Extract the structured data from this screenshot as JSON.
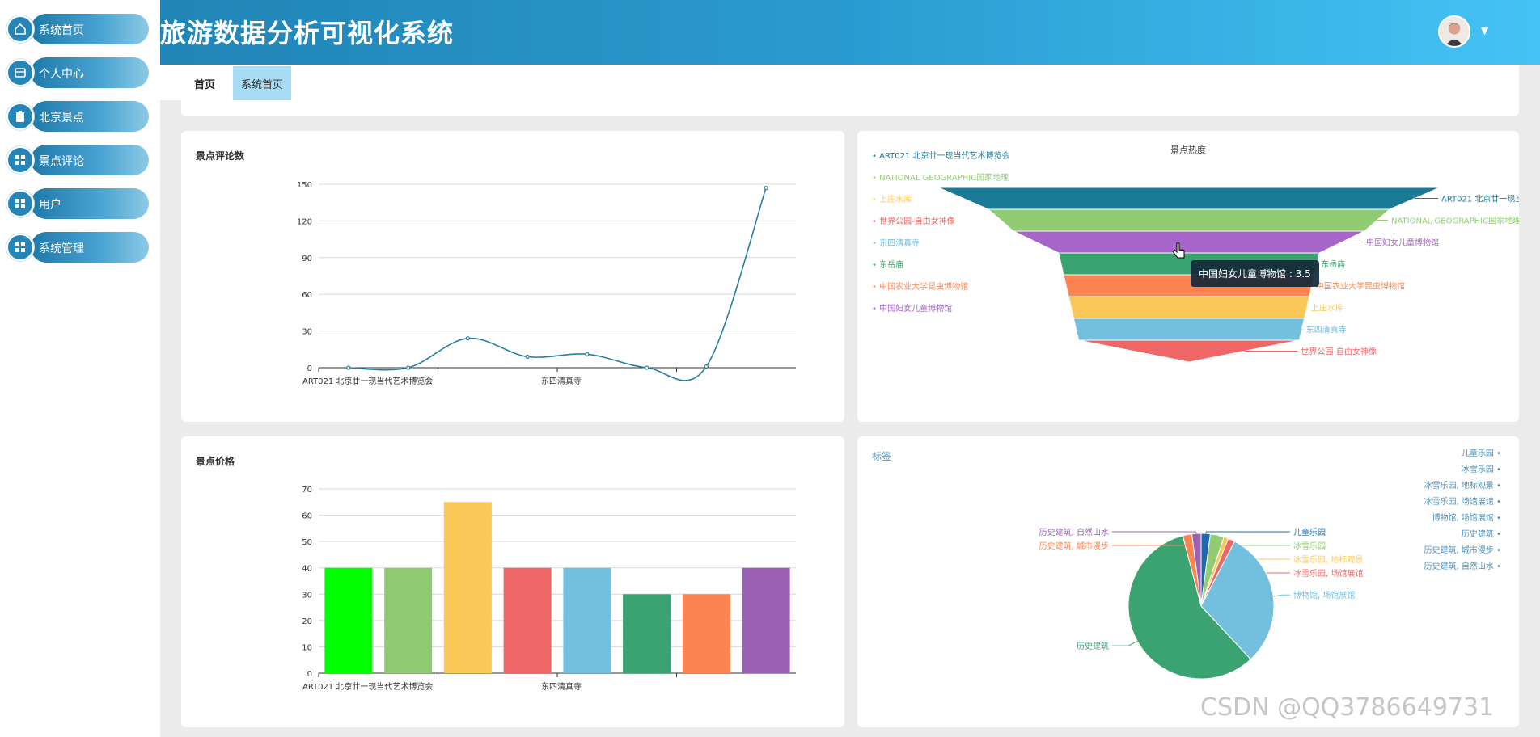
{
  "app": {
    "title": "旅游数据分析可视化系统"
  },
  "sidebar": {
    "items": [
      {
        "label": "系统首页",
        "icon": "home-icon"
      },
      {
        "label": "个人中心",
        "icon": "profile-icon"
      },
      {
        "label": "北京景点",
        "icon": "clipboard-icon"
      },
      {
        "label": "景点评论",
        "icon": "grid-icon"
      },
      {
        "label": "用户",
        "icon": "grid-icon"
      },
      {
        "label": "系统管理",
        "icon": "grid-icon"
      }
    ]
  },
  "tabs": [
    {
      "label": "首页"
    },
    {
      "label": "系统首页"
    }
  ],
  "watermark": "CSDN @QQ3786649731",
  "tooltip": "中国妇女儿童博物馆 : 3.5",
  "colors": {
    "header_start": "#1e7fb0",
    "header_end": "#45c3f4",
    "line": "#2a7fa0",
    "palette": [
      "#00ff00",
      "#91cc75",
      "#fac858",
      "#ee6666",
      "#73c0de",
      "#3ba272",
      "#fc8452",
      "#9a60b4",
      "#ea7ccc",
      "#5470c6"
    ]
  },
  "chart_data": [
    {
      "type": "line",
      "title": "景点评论数",
      "x": [
        "ART021 北京廿一现当代艺术博览会",
        "NATIONAL GEOGRAPHIC国家地理",
        "上庄水库",
        "世界公园-自由女神像",
        "东四清真寺",
        "东岳庙",
        "中国农业大学昆虫博物馆",
        "中国妇女儿童博物馆"
      ],
      "x_tick_labels": [
        "ART021 北京廿一现当代艺术博览会",
        "东四清真寺"
      ],
      "values": [
        0,
        0,
        24,
        9,
        11,
        0,
        1,
        147
      ],
      "ylim": [
        0,
        150
      ],
      "yticks": [
        0,
        30,
        60,
        90,
        120,
        150
      ],
      "smooth": true,
      "grid": true
    },
    {
      "type": "funnel",
      "title": "景点热度",
      "legend_position": "left",
      "legend": [
        "ART021 北京廿一现当代艺术博览会",
        "NATIONAL GEOGRAPHIC国家地理",
        "上庄水库",
        "世界公园-自由女神像",
        "东四清真寺",
        "东岳庙",
        "中国农业大学昆虫博物馆",
        "中国妇女儿童博物馆"
      ],
      "series": [
        {
          "name": "ART021 北京廿一现当代艺术博览会",
          "value": 5.0,
          "color": "#1b7a96"
        },
        {
          "name": "NATIONAL GEOGRAPHIC国家地理",
          "value": 4.0,
          "color": "#91cc75"
        },
        {
          "name": "中国妇女儿童博物馆",
          "value": 3.5,
          "color": "#a865c9"
        },
        {
          "name": "东岳庙",
          "value": 2.6,
          "color": "#3ba272"
        },
        {
          "name": "中国农业大学昆虫博物馆",
          "value": 2.5,
          "color": "#fc8452"
        },
        {
          "name": "上庄水库",
          "value": 2.4,
          "color": "#fac858"
        },
        {
          "name": "东四清真寺",
          "value": 2.3,
          "color": "#73c0de"
        },
        {
          "name": "世界公园-自由女神像",
          "value": 2.2,
          "color": "#ee6666"
        }
      ]
    },
    {
      "type": "bar",
      "title": "景点价格",
      "categories": [
        "ART021 北京廿一现当代艺术博览会",
        "NATIONAL GEOGRAPHIC国家地理",
        "上庄水库",
        "世界公园-自由女神像",
        "东四清真寺",
        "东岳庙",
        "中国农业大学昆虫博物馆",
        "中国妇女儿童博物馆"
      ],
      "x_tick_labels": [
        "ART021 北京廿一现当代艺术博览会",
        "东四清真寺"
      ],
      "values": [
        40,
        40,
        65,
        40,
        40,
        30,
        30,
        40
      ],
      "colors": [
        "#00ff00",
        "#91cc75",
        "#fac858",
        "#ee6666",
        "#73c0de",
        "#3ba272",
        "#fc8452",
        "#9a60b4"
      ],
      "ylim": [
        0,
        70
      ],
      "yticks": [
        0,
        10,
        20,
        30,
        40,
        50,
        60,
        70
      ],
      "grid": true
    },
    {
      "type": "pie",
      "title": "标签",
      "legend_position": "right",
      "legend": [
        "儿童乐园",
        "冰雪乐园",
        "冰雪乐园, 地标观景",
        "冰雪乐园, 场馆展馆",
        "博物馆, 场馆展馆",
        "历史建筑",
        "历史建筑, 城市漫步",
        "历史建筑, 自然山水"
      ],
      "slices": [
        {
          "name": "儿童乐园",
          "value": 2,
          "color": "#1e6aa8"
        },
        {
          "name": "冰雪乐园",
          "value": 3,
          "color": "#91cc75"
        },
        {
          "name": "冰雪乐园, 地标观景",
          "value": 1,
          "color": "#fac858"
        },
        {
          "name": "冰雪乐园, 场馆展馆",
          "value": 1.5,
          "color": "#ee6666"
        },
        {
          "name": "博物馆, 场馆展馆",
          "value": 30,
          "color": "#73c0de"
        },
        {
          "name": "历史建筑",
          "value": 57,
          "color": "#3ba272"
        },
        {
          "name": "历史建筑, 城市漫步",
          "value": 2,
          "color": "#fc8452"
        },
        {
          "name": "历史建筑, 自然山水",
          "value": 2,
          "color": "#9a60b4"
        }
      ]
    }
  ]
}
